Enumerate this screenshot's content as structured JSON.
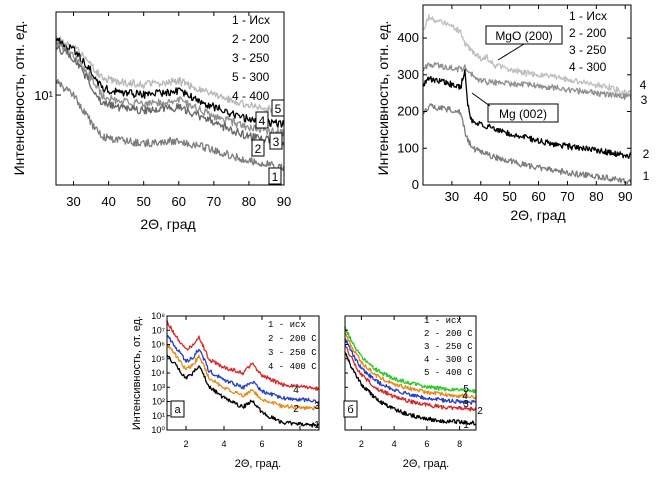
{
  "chart_data": [
    {
      "type": "line",
      "id": "p1",
      "xlabel": "2Θ, град",
      "ylabel": "Интенсивность, отн. ед.",
      "xlim": [
        25,
        90
      ],
      "y_scale": "log",
      "y_tick_label": "10¹",
      "x_ticks": [
        30,
        40,
        50,
        60,
        70,
        80,
        90
      ],
      "legend": [
        "1 - Исх",
        "2 - 200",
        "3 - 250",
        "5 - 300",
        "4 - 400"
      ],
      "series": [
        {
          "curve_label": "5",
          "color": "#b8b8b8",
          "x": [
            25,
            30,
            35,
            38,
            42,
            50,
            60,
            70,
            80,
            90
          ],
          "y": [
            0.85,
            0.8,
            0.7,
            0.62,
            0.6,
            0.58,
            0.6,
            0.52,
            0.46,
            0.42
          ]
        },
        {
          "curve_label": "4",
          "color": "#000000",
          "x": [
            25,
            30,
            35,
            38,
            42,
            50,
            60,
            70,
            80,
            90
          ],
          "y": [
            0.84,
            0.78,
            0.66,
            0.56,
            0.54,
            0.52,
            0.54,
            0.45,
            0.38,
            0.35
          ]
        },
        {
          "curve_label": "3",
          "color": "#909090",
          "x": [
            25,
            30,
            35,
            38,
            42,
            50,
            60,
            70,
            80,
            90
          ],
          "y": [
            0.82,
            0.75,
            0.62,
            0.52,
            0.49,
            0.47,
            0.49,
            0.4,
            0.33,
            0.3
          ]
        },
        {
          "curve_label": "2",
          "color": "#666666",
          "x": [
            25,
            30,
            35,
            38,
            42,
            50,
            60,
            70,
            80,
            90
          ],
          "y": [
            0.8,
            0.73,
            0.58,
            0.48,
            0.45,
            0.43,
            0.45,
            0.36,
            0.28,
            0.25
          ]
        },
        {
          "curve_label": "1",
          "color": "#7d7d7d",
          "x": [
            25,
            30,
            35,
            38,
            42,
            50,
            60,
            70,
            80,
            90
          ],
          "y": [
            0.6,
            0.52,
            0.36,
            0.28,
            0.26,
            0.24,
            0.26,
            0.2,
            0.14,
            0.1
          ]
        }
      ]
    },
    {
      "type": "line",
      "id": "p2",
      "xlabel": "2Θ, град",
      "ylabel": "Интенсивность, отн. ед.",
      "xlim": [
        20,
        92
      ],
      "ylim": [
        0,
        490
      ],
      "x_ticks": [
        30,
        40,
        50,
        60,
        70,
        80,
        90
      ],
      "y_ticks": [
        0,
        100,
        200,
        300,
        400
      ],
      "legend": [
        "1 - Исх",
        "2 - 200",
        "3 - 250",
        "4 - 300"
      ],
      "annotations": [
        "MgO (200)",
        "Mg (002)"
      ],
      "series": [
        {
          "curve_label": "4",
          "color": "#c0c0c0",
          "x": [
            20,
            22,
            25,
            28,
            31,
            33,
            35,
            37,
            40,
            42,
            45,
            55,
            65,
            75,
            85,
            90
          ],
          "y": [
            420,
            460,
            445,
            440,
            430,
            415,
            380,
            365,
            345,
            348,
            325,
            305,
            295,
            280,
            265,
            250
          ]
        },
        {
          "curve_label": "3",
          "color": "#909090",
          "x": [
            20,
            22,
            25,
            28,
            31,
            33,
            35,
            38,
            42,
            50,
            60,
            70,
            80,
            90
          ],
          "y": [
            310,
            330,
            325,
            320,
            318,
            315,
            320,
            290,
            280,
            275,
            270,
            260,
            250,
            240
          ]
        },
        {
          "curve_label": "2",
          "color": "#000000",
          "x": [
            20,
            22,
            25,
            28,
            31,
            33,
            34.5,
            35.5,
            36.5,
            38,
            42,
            50,
            60,
            70,
            80,
            90
          ],
          "y": [
            270,
            290,
            285,
            280,
            270,
            265,
            315,
            220,
            180,
            170,
            160,
            140,
            120,
            105,
            95,
            80
          ]
        },
        {
          "curve_label": "1",
          "color": "#7d7d7d",
          "x": [
            20,
            22,
            25,
            28,
            31,
            33,
            35,
            37,
            40,
            45,
            55,
            65,
            75,
            85,
            90
          ],
          "y": [
            195,
            215,
            210,
            205,
            205,
            200,
            130,
            100,
            90,
            75,
            55,
            40,
            28,
            18,
            10
          ]
        }
      ]
    },
    {
      "type": "line",
      "id": "pa",
      "panel_label": "а",
      "xlabel": "2Θ, град.",
      "ylabel": "Интенсивность, от. ед.",
      "y_scale": "log",
      "xlim": [
        1,
        9
      ],
      "x_ticks": [
        2,
        4,
        6,
        8
      ],
      "y_tick_labels": [
        "10⁸",
        "10⁷",
        "10⁶",
        "10⁵",
        "10⁴",
        "10³",
        "10²",
        "10¹",
        "10⁰"
      ],
      "legend": [
        "1 - исх",
        "2 - 200 C",
        "3 - 250 C",
        "4 - 400 C"
      ],
      "series": [
        {
          "curve_label": "4",
          "color": "#d42a2a",
          "x": [
            1,
            1.5,
            2,
            2.4,
            2.7,
            3.2,
            4,
            5,
            5.5,
            6,
            7,
            8,
            9
          ],
          "y": [
            0.95,
            0.82,
            0.7,
            0.75,
            0.82,
            0.62,
            0.55,
            0.5,
            0.58,
            0.48,
            0.4,
            0.38,
            0.36
          ]
        },
        {
          "curve_label": "3",
          "color": "#2540c8",
          "x": [
            1,
            1.5,
            2,
            2.4,
            2.7,
            3.2,
            4,
            5,
            5.5,
            6,
            7,
            8,
            9
          ],
          "y": [
            0.83,
            0.72,
            0.6,
            0.64,
            0.72,
            0.52,
            0.44,
            0.37,
            0.42,
            0.34,
            0.28,
            0.27,
            0.25
          ]
        },
        {
          "curve_label": "2",
          "color": "#e88a1a",
          "x": [
            1,
            1.5,
            2,
            2.4,
            2.7,
            3.2,
            4,
            5,
            5.5,
            6,
            7,
            8,
            9
          ],
          "y": [
            0.75,
            0.65,
            0.53,
            0.58,
            0.65,
            0.46,
            0.37,
            0.3,
            0.35,
            0.27,
            0.21,
            0.2,
            0.19
          ]
        },
        {
          "curve_label": "1",
          "color": "#000000",
          "x": [
            1,
            1.5,
            2,
            2.4,
            2.7,
            3.2,
            4,
            5,
            5.5,
            6,
            7,
            8,
            9
          ],
          "y": [
            0.66,
            0.56,
            0.45,
            0.5,
            0.58,
            0.38,
            0.28,
            0.2,
            0.26,
            0.15,
            0.07,
            0.05,
            0.04
          ]
        }
      ]
    },
    {
      "type": "line",
      "id": "pb",
      "panel_label": "б",
      "xlabel": "2Θ, град.",
      "xlim": [
        1,
        9
      ],
      "x_ticks": [
        2,
        4,
        6,
        8
      ],
      "legend": [
        "1 - исх",
        "2 - 200 C",
        "3 - 250 C",
        "4 - 300 C",
        "5 - 400 C"
      ],
      "series": [
        {
          "curve_label": "5",
          "color": "#2ec82e",
          "x": [
            1,
            1.5,
            2,
            3,
            4,
            5,
            6,
            7,
            8,
            9
          ],
          "y": [
            0.9,
            0.76,
            0.64,
            0.52,
            0.45,
            0.41,
            0.38,
            0.36,
            0.35,
            0.34
          ]
        },
        {
          "curve_label": "4",
          "color": "#e88a1a",
          "x": [
            1,
            1.5,
            2,
            3,
            4,
            5,
            6,
            7,
            8,
            9
          ],
          "y": [
            0.85,
            0.71,
            0.59,
            0.47,
            0.4,
            0.36,
            0.33,
            0.31,
            0.3,
            0.29
          ]
        },
        {
          "curve_label": "3",
          "color": "#2540c8",
          "x": [
            1,
            1.5,
            2,
            3,
            4,
            5,
            6,
            7,
            8,
            9
          ],
          "y": [
            0.8,
            0.66,
            0.54,
            0.42,
            0.35,
            0.31,
            0.28,
            0.26,
            0.25,
            0.24
          ]
        },
        {
          "curve_label": "2",
          "color": "#d42a2a",
          "x": [
            1,
            1.5,
            2,
            3,
            4,
            5,
            6,
            7,
            8,
            9
          ],
          "y": [
            0.75,
            0.6,
            0.48,
            0.36,
            0.29,
            0.25,
            0.22,
            0.2,
            0.19,
            0.18
          ]
        },
        {
          "curve_label": "1",
          "color": "#000000",
          "x": [
            1,
            1.5,
            2,
            3,
            4,
            5,
            6,
            7,
            8,
            9
          ],
          "y": [
            0.68,
            0.52,
            0.4,
            0.26,
            0.18,
            0.13,
            0.1,
            0.08,
            0.07,
            0.06
          ]
        }
      ]
    }
  ]
}
